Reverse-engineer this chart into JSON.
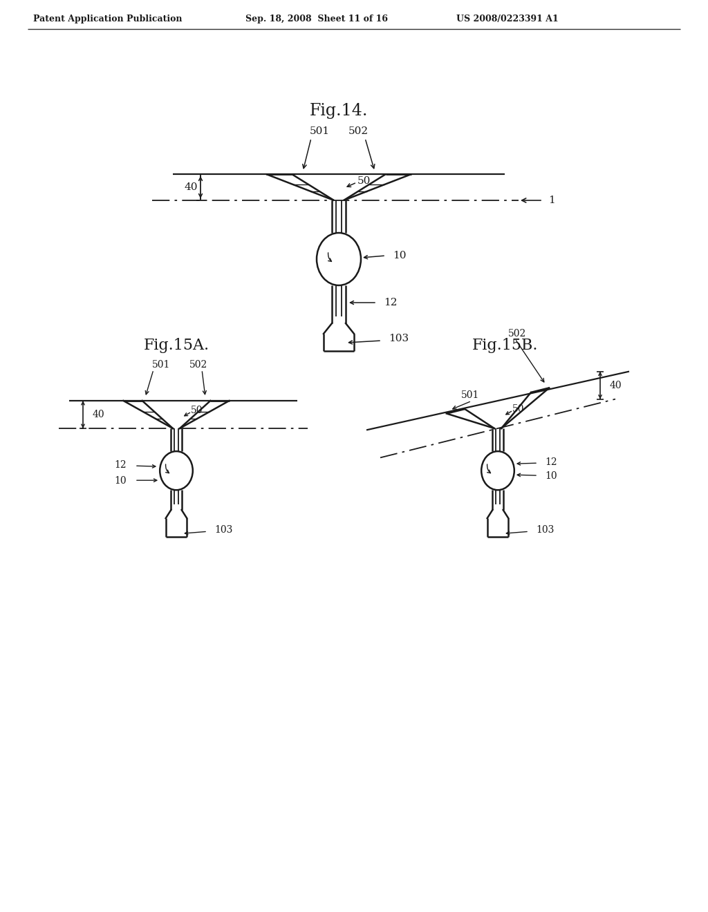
{
  "bg_color": "#ffffff",
  "header_left": "Patent Application Publication",
  "header_mid": "Sep. 18, 2008  Sheet 11 of 16",
  "header_right": "US 2008/0223391 A1",
  "fig14_title": "Fig.14.",
  "fig15a_title": "Fig.15A.",
  "fig15b_title": "Fig.15B.",
  "line_color": "#1a1a1a",
  "text_color": "#1a1a1a"
}
